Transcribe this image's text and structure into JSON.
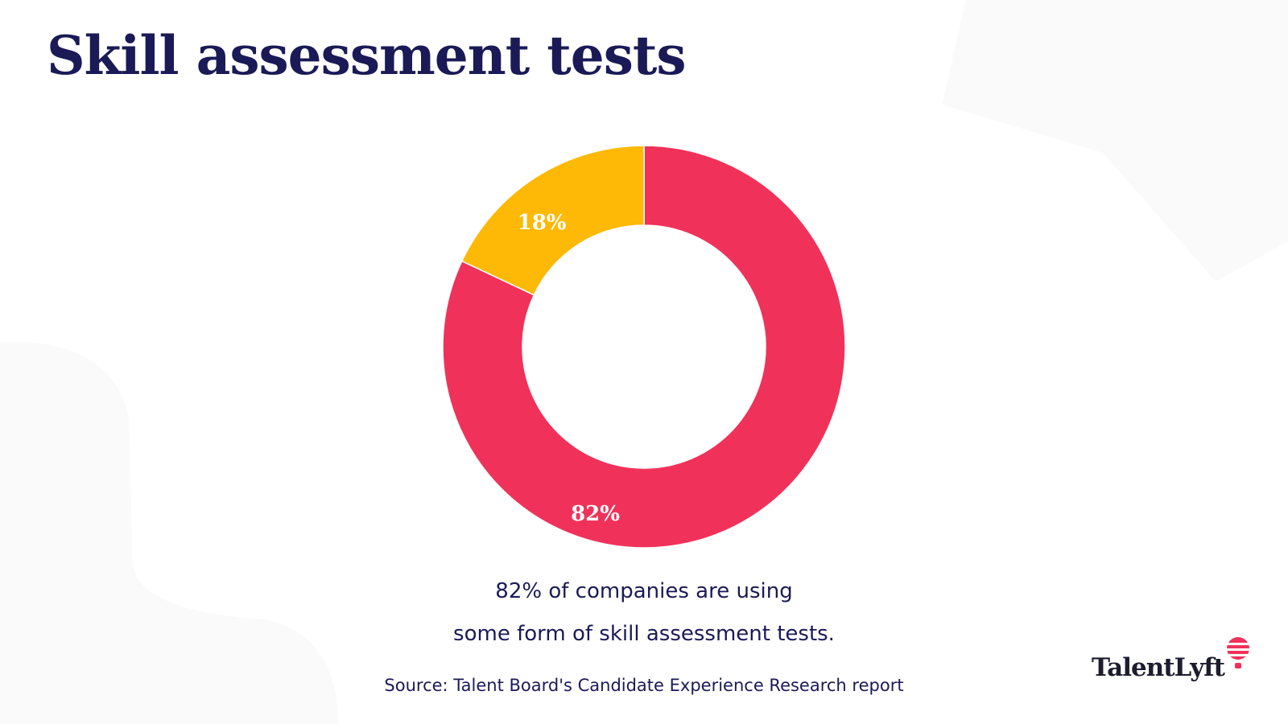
{
  "title": "Skill assessment tests",
  "chart_data": {
    "type": "pie",
    "variant": "donut",
    "slices": [
      {
        "label": "82%",
        "value": 82,
        "color": "#f0325a"
      },
      {
        "label": "18%",
        "value": 18,
        "color": "#fdb905"
      }
    ]
  },
  "caption": {
    "line1": "82% of companies are using",
    "line2": "some form of skill assessment tests."
  },
  "source": "Source: Talent Board's Candidate Experience Research report",
  "logo": {
    "text": "TalentLyft",
    "accent": "#f0325a"
  }
}
